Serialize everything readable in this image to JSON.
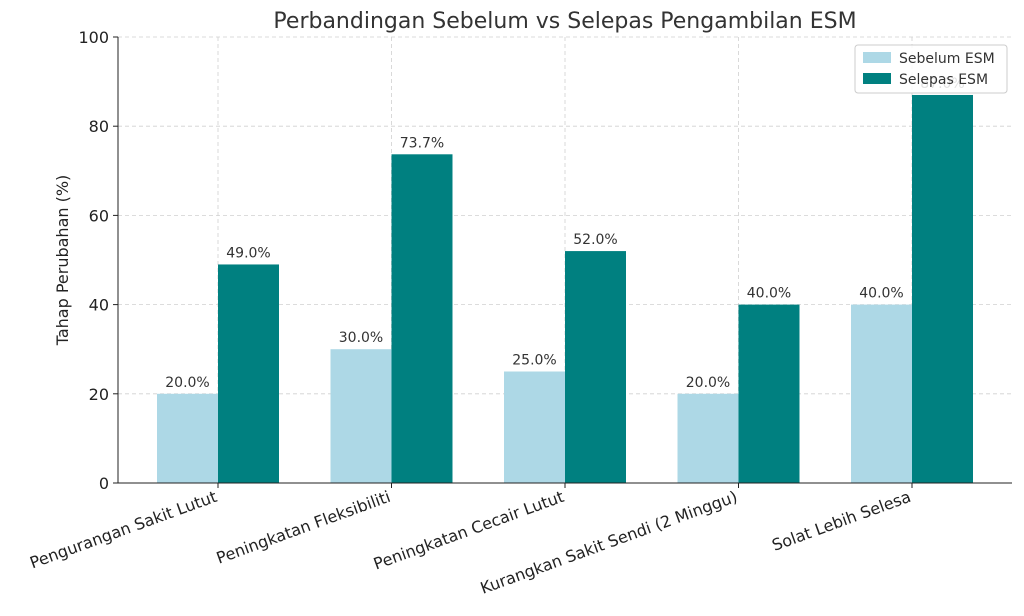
{
  "chart_data": {
    "type": "bar",
    "title": "Perbandingan Sebelum vs Selepas Pengambilan ESM",
    "xlabel": "",
    "ylabel": "Tahap Perubahan (%)",
    "ylim": [
      0,
      100
    ],
    "yticks": [
      0,
      20,
      40,
      60,
      80,
      100
    ],
    "grid": true,
    "legend_position": "top-right",
    "categories": [
      "Pengurangan Sakit Lutut",
      "Peningkatan Fleksibiliti",
      "Peningkatan Cecair Lutut",
      "Kurangkan Sakit Sendi (2 Minggu)",
      "Solat Lebih Selesa"
    ],
    "series": [
      {
        "name": "Sebelum ESM",
        "color": "#add8e6",
        "values": [
          20.0,
          30.0,
          25.0,
          20.0,
          40.0
        ],
        "labels": [
          "20.0%",
          "30.0%",
          "25.0%",
          "20.0%",
          "40.0%"
        ]
      },
      {
        "name": "Selepas ESM",
        "color": "#008080",
        "values": [
          49.0,
          73.7,
          52.0,
          40.0,
          87.0
        ],
        "labels": [
          "49.0%",
          "73.7%",
          "52.0%",
          "40.0%",
          "87.0%"
        ]
      }
    ]
  }
}
